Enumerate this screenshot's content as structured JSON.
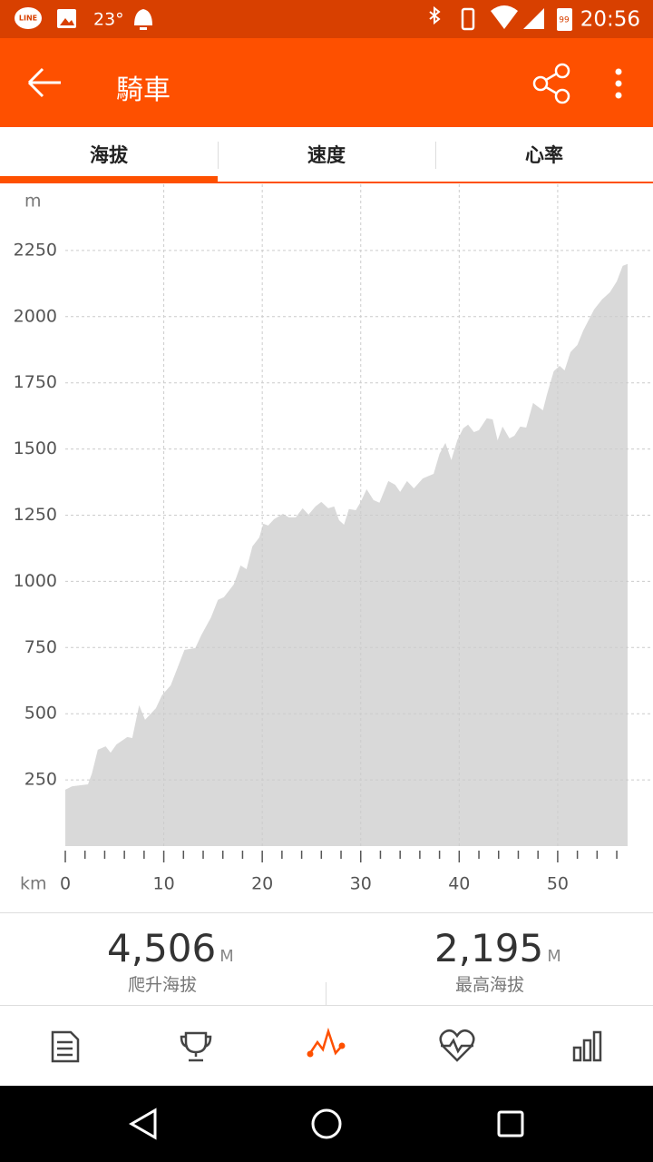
{
  "status_bar": {
    "line_label": "LINE",
    "temperature": "23°",
    "battery": "99",
    "time": "20:56"
  },
  "app_bar": {
    "title": "騎車"
  },
  "tabs": [
    "海拔",
    "速度",
    "心率"
  ],
  "chart_data": {
    "type": "area",
    "y_unit": "m",
    "x_unit": "km",
    "color": "#d9d9d9",
    "grid": true,
    "x": [
      0,
      0.7,
      2.3,
      2.7,
      3.3,
      4.1,
      4.6,
      5.2,
      6.3,
      6.8,
      7.5,
      8.1,
      9.2,
      9.8,
      10.7,
      12.1,
      13.2,
      13.8,
      14.8,
      15.5,
      16.1,
      17.1,
      17.8,
      18.4,
      19,
      19.7,
      20.1,
      20.6,
      21.2,
      22.1,
      22.7,
      23.4,
      24.1,
      24.7,
      25.4,
      26,
      26.7,
      27.3,
      27.8,
      28.3,
      28.8,
      29.5,
      30,
      30.6,
      31.3,
      31.9,
      32.8,
      33.5,
      34,
      34.7,
      35.4,
      36.3,
      37.4,
      38,
      38.6,
      39.2,
      39.8,
      40.4,
      40.9,
      41.5,
      42,
      42.8,
      43.4,
      43.9,
      44.4,
      45.1,
      45.6,
      46.2,
      46.8,
      47.5,
      48.5,
      48.9,
      49.6,
      50.2,
      50.7,
      51.3,
      52,
      52.6,
      53.7,
      54.5,
      55.3,
      56,
      56.6,
      57.1
    ],
    "values": [
      213,
      226,
      233,
      274,
      364,
      377,
      353,
      384,
      412,
      408,
      532,
      477,
      521,
      569,
      607,
      741,
      748,
      796,
      864,
      930,
      940,
      988,
      1060,
      1046,
      1132,
      1166,
      1218,
      1211,
      1235,
      1255,
      1242,
      1242,
      1276,
      1252,
      1283,
      1300,
      1276,
      1283,
      1231,
      1214,
      1273,
      1269,
      1300,
      1348,
      1307,
      1297,
      1379,
      1365,
      1338,
      1379,
      1351,
      1389,
      1406,
      1482,
      1523,
      1458,
      1533,
      1578,
      1592,
      1564,
      1571,
      1616,
      1612,
      1533,
      1585,
      1540,
      1550,
      1585,
      1581,
      1674,
      1646,
      1705,
      1794,
      1814,
      1797,
      1866,
      1893,
      1948,
      2027,
      2065,
      2092,
      2133,
      2192,
      2199
    ],
    "xlim": [
      0,
      57.1
    ],
    "xticks": [
      0,
      10,
      20,
      30,
      40,
      50
    ],
    "xminorticks": [
      2,
      4,
      6,
      8,
      12,
      14,
      16,
      18,
      22,
      24,
      26,
      28,
      32,
      34,
      36,
      38,
      42,
      44,
      46,
      48,
      52,
      54,
      56
    ],
    "ylim": [
      0,
      2500
    ],
    "yticks": [
      250,
      500,
      750,
      1000,
      1250,
      1500,
      1750,
      2000,
      2250
    ]
  },
  "stats": [
    {
      "value": "4,506",
      "unit": "M",
      "label": "爬升海拔"
    },
    {
      "value": "2,195",
      "unit": "M",
      "label": "最高海拔"
    }
  ]
}
